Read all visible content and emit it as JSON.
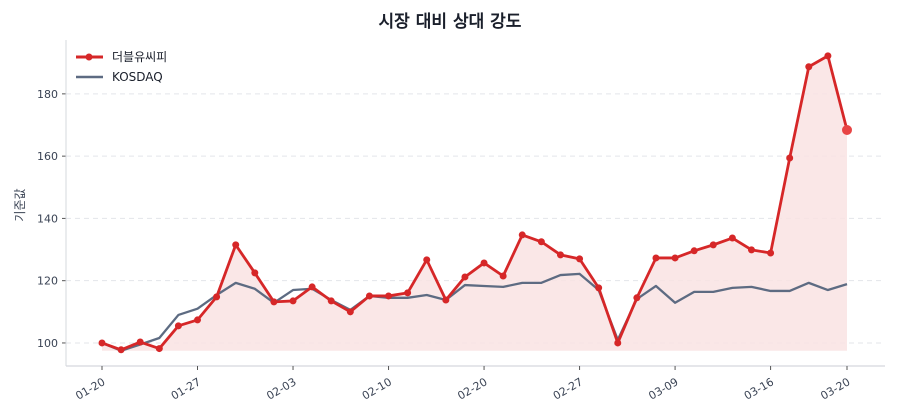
{
  "chart_data": {
    "type": "line",
    "title": "시장 대비 상대 강도",
    "xlabel": "",
    "ylabel": "기준값",
    "ylim": [
      92.6,
      197.3
    ],
    "yticks": [
      100,
      120,
      140,
      160,
      180
    ],
    "grid": "horizontal dashed",
    "legend_position": "top-left",
    "xtick_labels": [
      {
        "index": 0,
        "label": "01-20"
      },
      {
        "index": 5,
        "label": "01-27"
      },
      {
        "index": 10,
        "label": "02-03"
      },
      {
        "index": 15,
        "label": "02-10"
      },
      {
        "index": 20,
        "label": "02-20"
      },
      {
        "index": 25,
        "label": "02-27"
      },
      {
        "index": 30,
        "label": "03-09"
      },
      {
        "index": 35,
        "label": "03-16"
      },
      {
        "index": 39,
        "label": "03-20"
      }
    ],
    "series": [
      {
        "name": "더블유씨피",
        "color": "#d62728",
        "fill_color": "#f9e3e3",
        "markers": true,
        "values": [
          100.0,
          97.8,
          100.3,
          98.2,
          105.5,
          107.4,
          114.8,
          131.5,
          122.5,
          113.2,
          113.5,
          118.0,
          113.5,
          110.0,
          115.1,
          115.1,
          116.1,
          126.7,
          113.8,
          121.2,
          125.7,
          121.5,
          134.7,
          132.5,
          128.3,
          127.0,
          117.7,
          100.0,
          114.5,
          127.3,
          127.3,
          129.6,
          131.5,
          133.7,
          129.9,
          128.9,
          159.4,
          188.7,
          192.2,
          168.4
        ]
      },
      {
        "name": "KOSDAQ",
        "color": "#5d6b82",
        "markers": false,
        "values": [
          100.0,
          97.5,
          99.5,
          101.6,
          109.0,
          111.0,
          115.4,
          119.3,
          117.4,
          112.9,
          117.0,
          117.4,
          113.8,
          110.6,
          115.1,
          114.5,
          114.5,
          115.4,
          113.8,
          118.6,
          118.3,
          118.0,
          119.3,
          119.3,
          121.8,
          122.2,
          117.0,
          101.0,
          114.1,
          118.3,
          112.9,
          116.4,
          116.4,
          117.7,
          118.0,
          116.7,
          116.7,
          119.3,
          117.0,
          118.9
        ]
      }
    ]
  }
}
